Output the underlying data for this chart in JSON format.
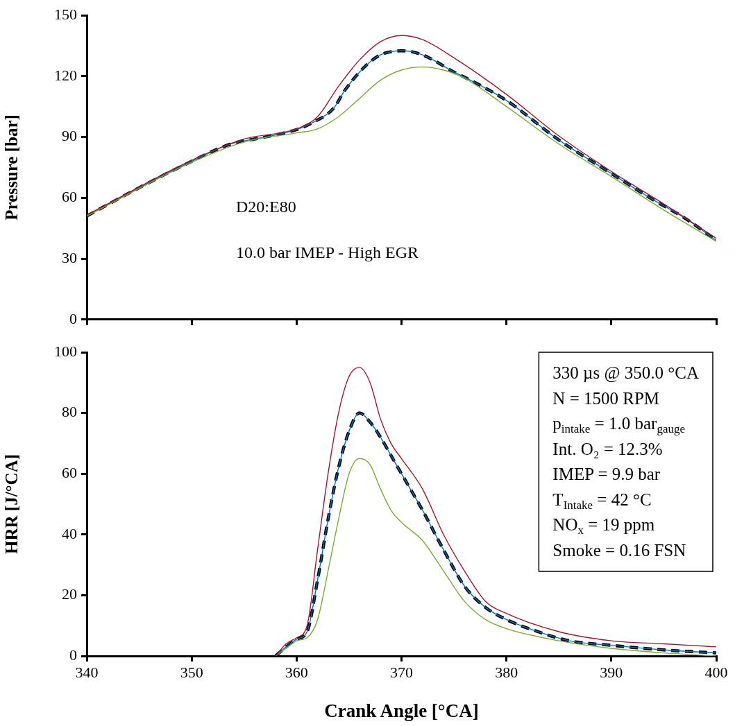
{
  "chart_data": [
    {
      "type": "line",
      "ylabel": "Pressure [bar]",
      "xlim": [
        340,
        400
      ],
      "xticks": [
        340,
        350,
        360,
        370,
        380,
        390,
        400
      ],
      "ylim": [
        0,
        150
      ],
      "yticks": [
        0,
        30,
        60,
        90,
        120,
        150
      ],
      "tick_labels": "y",
      "marker": "none",
      "annotations": [
        "D20:E80",
        "10.0 bar IMEP - High EGR"
      ],
      "series": [
        {
          "color": "#a2142f",
          "x": [
            340,
            350,
            355,
            360,
            362,
            364,
            366,
            368,
            370,
            372,
            375,
            380,
            385,
            390,
            395,
            400
          ],
          "values": [
            51.5,
            78.5,
            89,
            94,
            100,
            115,
            128,
            137,
            140,
            138,
            129,
            111,
            90.5,
            73,
            57,
            40
          ]
        },
        {
          "color": "#77ac30",
          "x": [
            340,
            350,
            355,
            360,
            362,
            364,
            366,
            368,
            370,
            372,
            374,
            376,
            380,
            385,
            390,
            395,
            400
          ],
          "values": [
            51,
            77.5,
            87.5,
            92,
            94,
            100,
            109,
            118,
            123,
            124.5,
            123,
            119,
            105,
            86.5,
            70.5,
            54,
            38.5
          ]
        },
        {
          "color": "#0072bd",
          "x": [
            340,
            345,
            350,
            353.7,
            356,
            358,
            360.2,
            361.5,
            363.5,
            364.6,
            366,
            367,
            368,
            369,
            370,
            371,
            372,
            373,
            375,
            376,
            380,
            385,
            390,
            394,
            397,
            400
          ],
          "values": [
            51,
            65,
            78,
            86.5,
            89,
            91,
            94,
            97,
            104,
            113,
            122,
            127,
            130.5,
            132,
            132.5,
            132,
            130.5,
            128,
            122,
            119.5,
            108,
            88.5,
            72,
            59,
            50,
            39
          ]
        },
        {
          "color": "#000000",
          "line_style": "dashed",
          "x": [
            340,
            345,
            350,
            353.7,
            356,
            358,
            360.2,
            361.5,
            363.5,
            364.6,
            366,
            367,
            368,
            369,
            370,
            371,
            372,
            373,
            375,
            376,
            380,
            385,
            390,
            394,
            397,
            400
          ],
          "values": [
            51,
            65,
            78,
            86.5,
            89,
            91,
            94,
            97,
            104,
            113,
            122,
            127,
            130.5,
            132,
            132.5,
            132,
            130.5,
            128,
            122,
            119.5,
            108,
            88.5,
            72,
            59,
            50,
            39
          ]
        }
      ]
    },
    {
      "type": "line",
      "xlabel": "Crank Angle [°CA]",
      "ylabel": "HRR [J/°CA]",
      "xlim": [
        340,
        400
      ],
      "xticks": [
        340,
        350,
        360,
        370,
        380,
        390,
        400
      ],
      "ylim": [
        0,
        100
      ],
      "yticks": [
        0,
        20,
        40,
        60,
        80,
        100
      ],
      "marker": "none",
      "annotations": [
        "330 µs @ 350.0 °CA",
        "N = 1500 RPM",
        "p$_{intake}$ = 1.0 bar$_{gauge}$",
        "Int. O₂ = 12.3%",
        "IMEP = 9.9 bar",
        "T$_{Intake}$ = 42 °C",
        "NO$_{x}$ = 19 ppm",
        "Smoke = 0.16 FSN"
      ],
      "series": [
        {
          "color": "#a2142f",
          "x": [
            358,
            359,
            360,
            361,
            362,
            363,
            364,
            365,
            366,
            367,
            368,
            369,
            370,
            372,
            374,
            376,
            378,
            380,
            385,
            390,
            395,
            400
          ],
          "values": [
            0,
            4,
            6,
            10,
            35,
            60,
            80,
            92,
            95,
            90,
            78,
            70,
            65,
            55,
            40,
            28,
            18,
            14,
            8,
            5,
            4,
            3
          ]
        },
        {
          "color": "#77ac30",
          "x": [
            358,
            359,
            360,
            361,
            362,
            363,
            364,
            365,
            366,
            367,
            368,
            369,
            370,
            372,
            374,
            376,
            378,
            380,
            385,
            390,
            395,
            400
          ],
          "values": [
            0,
            2.5,
            5,
            6,
            12,
            28,
            45,
            60,
            65,
            63,
            55,
            48,
            44,
            38,
            28,
            18,
            12,
            9,
            5,
            2.5,
            1,
            0
          ]
        },
        {
          "color": "#0072bd",
          "x": [
            358,
            359,
            360,
            361,
            362,
            363,
            364,
            365,
            366,
            367,
            368,
            369,
            370,
            372,
            374,
            376,
            378,
            380,
            383,
            386,
            390,
            395,
            400
          ],
          "values": [
            0,
            3,
            5.5,
            8,
            25,
            45,
            62,
            74,
            80,
            77,
            72,
            66,
            60,
            48,
            35,
            23,
            16,
            12,
            8,
            5,
            3.5,
            2,
            1
          ]
        },
        {
          "color": "#000000",
          "line_style": "dashed",
          "x": [
            358,
            359,
            360,
            361,
            362,
            363,
            364,
            365,
            366,
            367,
            368,
            369,
            370,
            372,
            374,
            376,
            378,
            380,
            383,
            386,
            390,
            395,
            400
          ],
          "values": [
            0,
            3,
            5.5,
            8,
            25,
            45,
            62,
            74,
            80,
            77,
            72,
            66,
            60,
            48,
            35,
            23,
            16,
            12,
            8,
            5,
            3.5,
            2,
            1
          ]
        }
      ]
    }
  ]
}
